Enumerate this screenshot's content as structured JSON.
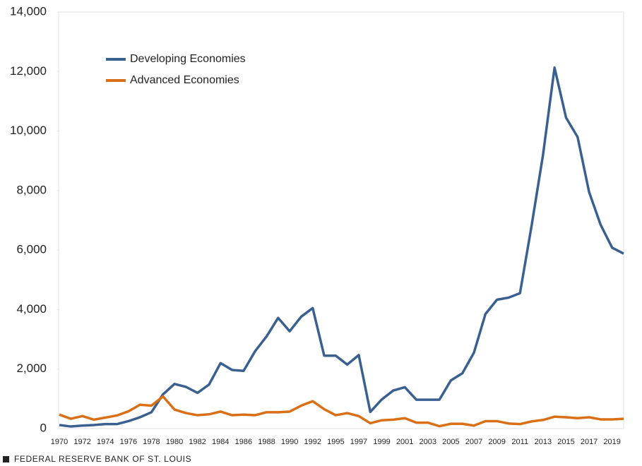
{
  "chart_data": {
    "type": "line",
    "categories": [
      "1970",
      null,
      "1972",
      null,
      "1974",
      null,
      "1976",
      null,
      "1978",
      null,
      "1980",
      null,
      "1982",
      null,
      "1984",
      null,
      "1986",
      null,
      "1988",
      null,
      "1990",
      null,
      "1992",
      null,
      "1995",
      null,
      "1997",
      null,
      "1999",
      null,
      "2001",
      null,
      "2003",
      null,
      "2005",
      null,
      "2007",
      null,
      "2009",
      null,
      "2011",
      null,
      "2013",
      null,
      "2015",
      null,
      "2017",
      null,
      "2019",
      null
    ],
    "series": [
      {
        "name": "Developing Economies",
        "color": "#3a6090",
        "values": [
          120,
          70,
          100,
          120,
          150,
          150,
          250,
          380,
          550,
          1150,
          1500,
          1400,
          1200,
          1480,
          2200,
          1970,
          1940,
          2600,
          3100,
          3720,
          3270,
          3760,
          4050,
          2450,
          2450,
          2150,
          2470,
          560,
          980,
          1280,
          1390,
          970,
          970,
          970,
          1620,
          1860,
          2550,
          3850,
          4330,
          4400,
          4550,
          6800,
          9200,
          12130,
          10450,
          9800,
          7950,
          6850,
          6080,
          5880
        ]
      },
      {
        "name": "Advanced Economies",
        "color": "#d96f16",
        "values": [
          470,
          330,
          420,
          300,
          370,
          440,
          580,
          800,
          770,
          1080,
          640,
          520,
          450,
          480,
          570,
          450,
          470,
          450,
          550,
          550,
          570,
          770,
          920,
          650,
          450,
          520,
          420,
          180,
          280,
          300,
          350,
          200,
          200,
          80,
          160,
          160,
          100,
          250,
          250,
          170,
          150,
          240,
          290,
          400,
          380,
          350,
          380,
          310,
          310,
          330
        ]
      }
    ],
    "ylim": [
      0,
      14000
    ],
    "yticks": [
      0,
      {
        "value": 2000,
        "label": "2,000"
      },
      {
        "value": 4000,
        "label": "4,000"
      },
      {
        "value": 6000,
        "label": "6,000"
      },
      {
        "value": 8000,
        "label": "8,000"
      },
      {
        "value": 10000,
        "label": "10,000"
      },
      {
        "value": 12000,
        "label": "12,000"
      },
      {
        "value": 14000,
        "label": "14,000"
      }
    ],
    "grid": false,
    "legend": "upper left",
    "source": "FEDERAL RESERVE BANK OF ST. LOUIS"
  }
}
